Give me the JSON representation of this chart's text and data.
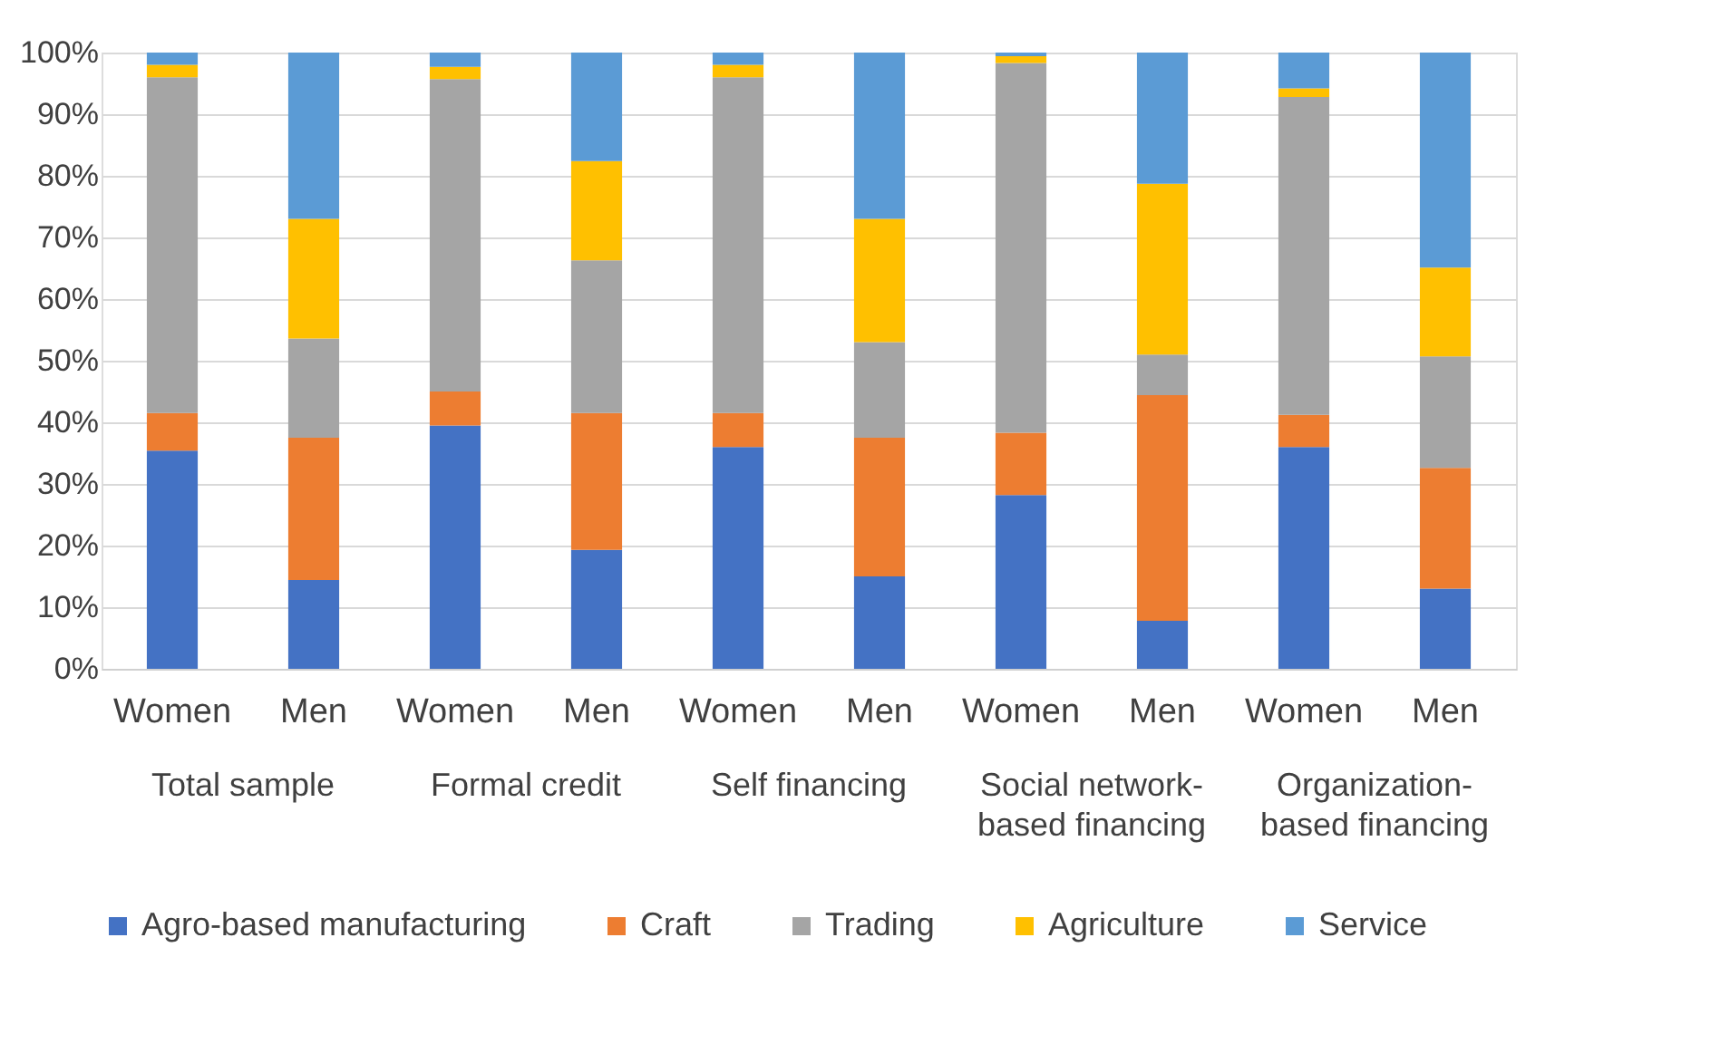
{
  "chart_data": {
    "type": "bar",
    "stacked": true,
    "categories": [
      "Women",
      "Men",
      "Women",
      "Men",
      "Women",
      "Men",
      "Women",
      "Men",
      "Women",
      "Men"
    ],
    "annotations": [
      "Total sample",
      "Formal credit",
      "Self financing",
      "Social network-based financing",
      "Organization-based financing"
    ],
    "series": [
      {
        "name": "Agro-based manufacturing",
        "color": "#4472c4",
        "values": [
          35.4,
          14.4,
          39.5,
          19.3,
          36,
          15,
          28.2,
          7.8,
          36,
          13
        ]
      },
      {
        "name": "Craft",
        "color": "#ed7d31",
        "values": [
          6.1,
          23.1,
          5.5,
          22.2,
          5.5,
          22.5,
          10.1,
          36.6,
          5.2,
          19.6
        ]
      },
      {
        "name": "Trading",
        "color": "#a5a5a5",
        "values": [
          54.5,
          16.1,
          50.7,
          24.8,
          54.5,
          15.5,
          60,
          6.6,
          51.6,
          18.1
        ]
      },
      {
        "name": "Agriculture",
        "color": "#ffc000",
        "values": [
          2,
          19.4,
          2,
          16.1,
          2,
          20,
          1.1,
          27.7,
          1.4,
          14.4
        ]
      },
      {
        "name": "Service",
        "color": "#5b9bd5",
        "values": [
          2,
          27,
          2.3,
          17.6,
          2,
          27,
          0.6,
          21.3,
          5.8,
          34.9
        ]
      }
    ],
    "ylim": [
      0,
      100
    ],
    "yticks": [
      {
        "value": 0,
        "label": "0%"
      },
      {
        "value": 10,
        "label": "10%"
      },
      {
        "value": 20,
        "label": "20%"
      },
      {
        "value": 30,
        "label": "30%"
      },
      {
        "value": 40,
        "label": "40%"
      },
      {
        "value": 50,
        "label": "50%"
      },
      {
        "value": 60,
        "label": "60%"
      },
      {
        "value": 70,
        "label": "70%"
      },
      {
        "value": 80,
        "label": "80%"
      },
      {
        "value": 90,
        "label": "90%"
      },
      {
        "value": 100,
        "label": "100%"
      }
    ],
    "grid": "y",
    "legend": "bottom"
  }
}
